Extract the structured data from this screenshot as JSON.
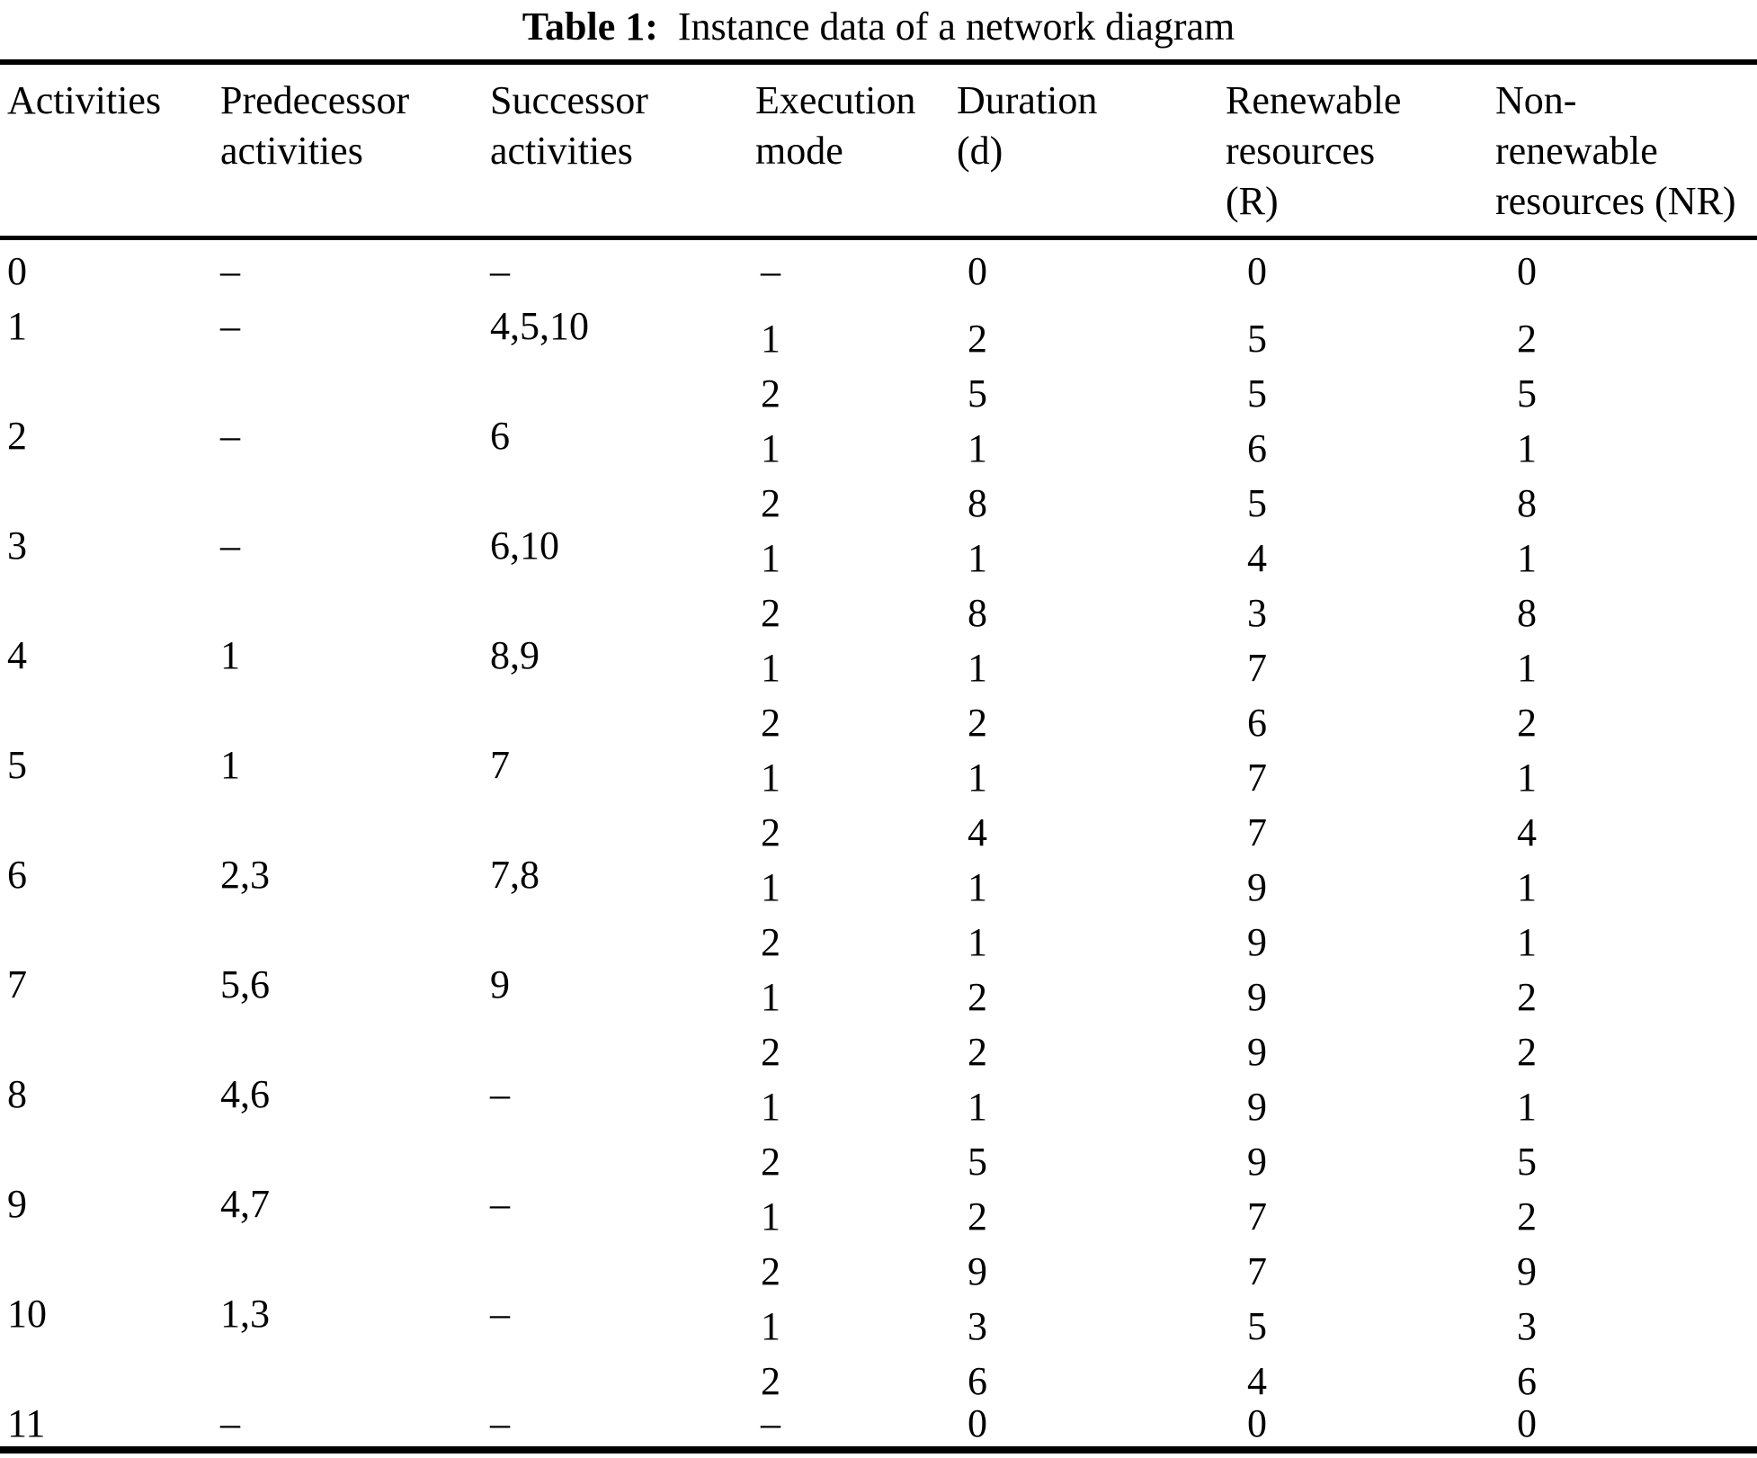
{
  "title": {
    "label": "Table 1:",
    "text": "Instance data of a network diagram"
  },
  "table": {
    "columns": [
      {
        "id": "activities",
        "lines": [
          "Activities"
        ]
      },
      {
        "id": "predecessor",
        "lines": [
          "Predecessor",
          "activities"
        ]
      },
      {
        "id": "successor",
        "lines": [
          "Successor",
          "activities"
        ]
      },
      {
        "id": "execution-mode",
        "lines": [
          "Execution",
          "mode"
        ]
      },
      {
        "id": "duration",
        "lines": [
          "Duration",
          "(d)"
        ]
      },
      {
        "id": "renewable",
        "lines": [
          "Renewable",
          "resources",
          "(R)"
        ]
      },
      {
        "id": "non-renewable",
        "lines": [
          "Non-",
          "renewable",
          "resources (NR)"
        ]
      }
    ],
    "rows": [
      {
        "activity": "0",
        "pred": "–",
        "succ": "–",
        "modes": [
          {
            "mode": "–",
            "d": "0",
            "r": "0",
            "nr": "0"
          }
        ]
      },
      {
        "activity": "1",
        "pred": "–",
        "succ": "4,5,10",
        "modes": [
          {
            "mode": "1",
            "d": "2",
            "r": "5",
            "nr": "2"
          },
          {
            "mode": "2",
            "d": "5",
            "r": "5",
            "nr": "5"
          }
        ]
      },
      {
        "activity": "2",
        "pred": "–",
        "succ": "6",
        "modes": [
          {
            "mode": "1",
            "d": "1",
            "r": "6",
            "nr": "1"
          },
          {
            "mode": "2",
            "d": "8",
            "r": "5",
            "nr": "8"
          }
        ]
      },
      {
        "activity": "3",
        "pred": "–",
        "succ": "6,10",
        "modes": [
          {
            "mode": "1",
            "d": "1",
            "r": "4",
            "nr": "1"
          },
          {
            "mode": "2",
            "d": "8",
            "r": "3",
            "nr": "8"
          }
        ]
      },
      {
        "activity": "4",
        "pred": "1",
        "succ": "8,9",
        "modes": [
          {
            "mode": "1",
            "d": "1",
            "r": "7",
            "nr": "1"
          },
          {
            "mode": "2",
            "d": "2",
            "r": "6",
            "nr": "2"
          }
        ]
      },
      {
        "activity": "5",
        "pred": "1",
        "succ": "7",
        "modes": [
          {
            "mode": "1",
            "d": "1",
            "r": "7",
            "nr": "1"
          },
          {
            "mode": "2",
            "d": "4",
            "r": "7",
            "nr": "4"
          }
        ]
      },
      {
        "activity": "6",
        "pred": "2,3",
        "succ": "7,8",
        "modes": [
          {
            "mode": "1",
            "d": "1",
            "r": "9",
            "nr": "1"
          },
          {
            "mode": "2",
            "d": "1",
            "r": "9",
            "nr": "1"
          }
        ]
      },
      {
        "activity": "7",
        "pred": "5,6",
        "succ": "9",
        "modes": [
          {
            "mode": "1",
            "d": "2",
            "r": "9",
            "nr": "2"
          },
          {
            "mode": "2",
            "d": "2",
            "r": "9",
            "nr": "2"
          }
        ]
      },
      {
        "activity": "8",
        "pred": "4,6",
        "succ": "–",
        "modes": [
          {
            "mode": "1",
            "d": "1",
            "r": "9",
            "nr": "1"
          },
          {
            "mode": "2",
            "d": "5",
            "r": "9",
            "nr": "5"
          }
        ]
      },
      {
        "activity": "9",
        "pred": "4,7",
        "succ": "–",
        "modes": [
          {
            "mode": "1",
            "d": "2",
            "r": "7",
            "nr": "2"
          },
          {
            "mode": "2",
            "d": "9",
            "r": "7",
            "nr": "9"
          }
        ]
      },
      {
        "activity": "10",
        "pred": "1,3",
        "succ": "–",
        "modes": [
          {
            "mode": "1",
            "d": "3",
            "r": "5",
            "nr": "3"
          },
          {
            "mode": "2",
            "d": "6",
            "r": "4",
            "nr": "6"
          }
        ]
      },
      {
        "activity": "11",
        "pred": "–",
        "succ": "–",
        "modes": [
          {
            "mode": "–",
            "d": "0",
            "r": "0",
            "nr": "0"
          }
        ]
      }
    ]
  }
}
